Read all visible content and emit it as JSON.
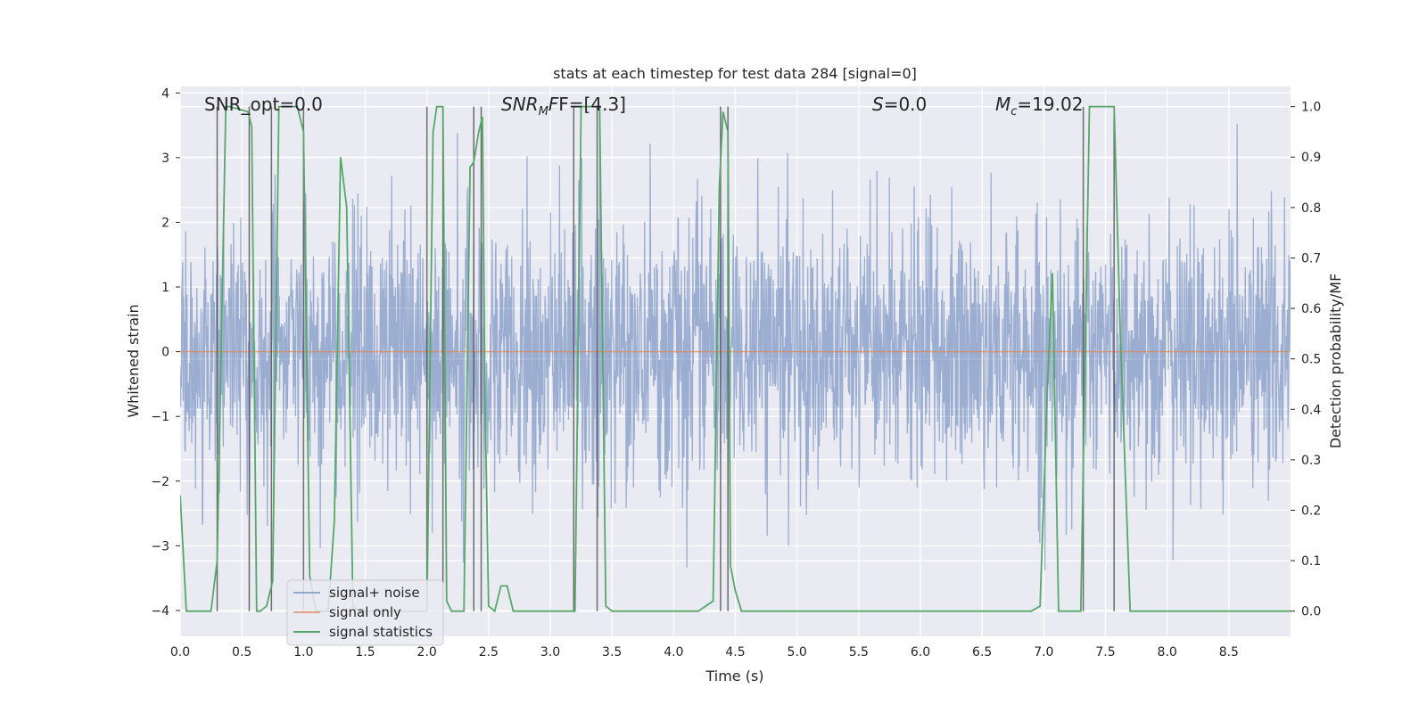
{
  "chart_data": {
    "type": "line",
    "title": "stats at each timestep for test data 284 [signal=0]",
    "xlabel": "Time (s)",
    "ylabel": "Whitened strain",
    "y2label": "Detection probability/MF",
    "xlim": [
      0,
      9.0
    ],
    "ylim": [
      -4.4,
      4.1
    ],
    "y2lim": [
      -0.05,
      1.04
    ],
    "xticks": [
      0.0,
      0.5,
      1.0,
      1.5,
      2.0,
      2.5,
      3.0,
      3.5,
      4.0,
      4.5,
      5.0,
      5.5,
      6.0,
      6.5,
      7.0,
      7.5,
      8.0,
      8.5
    ],
    "xtick_labels": [
      "0.0",
      "0.5",
      "1.0",
      "1.5",
      "2.0",
      "2.5",
      "3.0",
      "3.5",
      "4.0",
      "4.5",
      "5.0",
      "5.5",
      "6.0",
      "6.5",
      "7.0",
      "7.5",
      "8.0",
      "8.5"
    ],
    "yticks": [
      -4,
      -3,
      -2,
      -1,
      0,
      1,
      2,
      3,
      4
    ],
    "ytick_labels": [
      "−4",
      "−3",
      "−2",
      "−1",
      "0",
      "1",
      "2",
      "3",
      "4"
    ],
    "y2ticks": [
      0.0,
      0.1,
      0.2,
      0.3,
      0.4,
      0.5,
      0.6,
      0.7,
      0.8,
      0.9,
      1.0
    ],
    "y2tick_labels": [
      "0.0",
      "0.1",
      "0.2",
      "0.3",
      "0.4",
      "0.5",
      "0.6",
      "0.7",
      "0.8",
      "0.9",
      "1.0"
    ],
    "annotations": {
      "snr_opt": "SNR_opt=0.0",
      "snr_mf_main": "SNR",
      "snr_mf_sub": "M",
      "snr_mf_rest": "F=[4.3]",
      "s_main": "S",
      "s_rest": "=0.0",
      "mc_main": "M",
      "mc_sub": "c",
      "mc_rest": "=19.02"
    },
    "legend": {
      "position": "lower-left",
      "entries": [
        "signal+ noise",
        "signal only",
        "signal statistics"
      ]
    },
    "series": [
      {
        "name": "signal+ noise",
        "color": "#4c72b0",
        "kind": "noise",
        "axis": "left",
        "sigma": 1.0,
        "x_range": [
          0,
          9.0
        ]
      },
      {
        "name": "signal only",
        "color": "#dd8452",
        "axis": "left",
        "x": [
          0,
          9.0
        ],
        "y": [
          0,
          0
        ]
      },
      {
        "name": "signal statistics",
        "color": "#55a868",
        "axis": "right",
        "x": [
          0.0,
          0.05,
          0.1,
          0.25,
          0.3,
          0.37,
          0.4,
          0.55,
          0.58,
          0.62,
          0.65,
          0.7,
          0.75,
          0.8,
          0.85,
          0.95,
          1.0,
          1.05,
          1.1,
          1.15,
          1.2,
          1.25,
          1.3,
          1.35,
          1.4,
          1.45,
          1.5,
          1.55,
          1.6,
          1.7,
          1.8,
          1.9,
          2.0,
          2.05,
          2.08,
          2.1,
          2.13,
          2.16,
          2.2,
          2.25,
          2.3,
          2.35,
          2.38,
          2.42,
          2.45,
          2.47,
          2.5,
          2.55,
          2.6,
          2.65,
          2.7,
          2.75,
          2.8,
          2.9,
          3.0,
          3.1,
          3.2,
          3.25,
          3.3,
          3.35,
          3.4,
          3.45,
          3.5,
          3.6,
          3.8,
          4.0,
          4.2,
          4.32,
          4.37,
          4.4,
          4.44,
          4.46,
          4.5,
          4.55,
          4.6,
          4.8,
          5.0,
          5.5,
          6.0,
          6.5,
          6.9,
          6.97,
          7.03,
          7.07,
          7.12,
          7.2,
          7.3,
          7.37,
          7.4,
          7.5,
          7.57,
          7.62,
          7.7,
          7.8,
          8.0,
          8.5,
          9.0
        ],
        "y": [
          0.23,
          0.0,
          0.0,
          0.0,
          0.1,
          1.0,
          1.0,
          0.99,
          0.96,
          0.0,
          0.0,
          0.01,
          0.06,
          1.0,
          1.0,
          1.0,
          0.95,
          0.07,
          0.0,
          0.0,
          0.0,
          0.18,
          0.9,
          0.8,
          0.01,
          0.0,
          0.0,
          0.0,
          0.0,
          0.0,
          0.0,
          0.0,
          0.0,
          0.95,
          1.0,
          1.0,
          1.0,
          0.02,
          0.0,
          0.0,
          0.0,
          0.88,
          0.89,
          0.95,
          0.98,
          0.43,
          0.01,
          0.0,
          0.05,
          0.05,
          0.0,
          0.0,
          0.0,
          0.0,
          0.0,
          0.0,
          0.0,
          1.0,
          1.0,
          1.0,
          1.0,
          0.01,
          0.0,
          0.0,
          0.0,
          0.0,
          0.0,
          0.02,
          0.84,
          0.99,
          0.95,
          0.09,
          0.04,
          0.0,
          0.0,
          0.0,
          0.0,
          0.0,
          0.0,
          0.0,
          0.0,
          0.01,
          0.45,
          0.67,
          0.0,
          0.0,
          0.0,
          1.0,
          1.0,
          1.0,
          1.0,
          0.55,
          0.0,
          0.0,
          0.0,
          0.0,
          0.0
        ]
      }
    ],
    "vlines": {
      "color": "#555555",
      "x": [
        0.3,
        0.56,
        0.74,
        1.0,
        2.0,
        2.13,
        2.38,
        2.44,
        3.19,
        3.38,
        4.38,
        4.44,
        7.32,
        7.57
      ]
    }
  }
}
